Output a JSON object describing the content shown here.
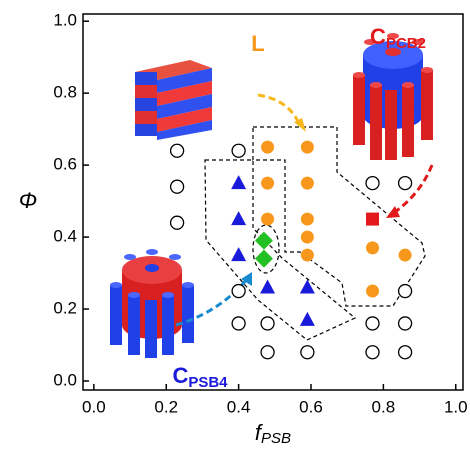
{
  "chart_data": {
    "type": "scatter",
    "x_label": {
      "text": "f",
      "sub": "PSB"
    },
    "y_label": "Φ",
    "xlim": [
      -0.03,
      1.02
    ],
    "ylim": [
      -0.025,
      1.02
    ],
    "xticks": [
      {
        "value": 0,
        "label": "0.0"
      },
      0.2,
      0.4,
      0.6,
      0.8,
      {
        "value": 1,
        "label": "1.0"
      }
    ],
    "yticks": [
      {
        "value": 0,
        "label": "0.0"
      },
      0.2,
      0.4,
      0.6,
      0.8,
      {
        "value": 1,
        "label": "1.0"
      }
    ],
    "series": [
      {
        "marker": "open-circle",
        "color": "#000000",
        "x": [
          0.23,
          0.23,
          0.23,
          0.4,
          0.4,
          0.4,
          0.48,
          0.48,
          0.59,
          0.77,
          0.77,
          0.77,
          0.86,
          0.86,
          0.86,
          0.86
        ],
        "values": [
          0.64,
          0.54,
          0.44,
          0.64,
          0.25,
          0.16,
          0.16,
          0.08,
          0.08,
          0.55,
          0.16,
          0.08,
          0.55,
          0.25,
          0.16,
          0.08
        ]
      },
      {
        "marker": "circle",
        "color": "#f7981d",
        "x": [
          0.48,
          0.48,
          0.48,
          0.59,
          0.59,
          0.59,
          0.59,
          0.59,
          0.77,
          0.77,
          0.86
        ],
        "values": [
          0.65,
          0.55,
          0.45,
          0.65,
          0.55,
          0.45,
          0.4,
          0.35,
          0.37,
          0.25,
          0.35
        ]
      },
      {
        "marker": "triangle",
        "color": "#1a1adb",
        "x": [
          0.4,
          0.4,
          0.4,
          0.48,
          0.59,
          0.59
        ],
        "values": [
          0.55,
          0.45,
          0.35,
          0.26,
          0.26,
          0.17
        ]
      },
      {
        "marker": "diamond",
        "color": "#22c022",
        "x": [
          0.47,
          0.47
        ],
        "values": [
          0.39,
          0.34
        ]
      },
      {
        "marker": "square",
        "color": "#e31a1c",
        "x": [
          0.77
        ],
        "values": [
          0.45
        ]
      }
    ],
    "annotations": [
      {
        "text": "L",
        "color": "#f7981d"
      },
      {
        "text": "C",
        "sub": "PCB2",
        "color": "#e31a1c"
      },
      {
        "text": "C",
        "sub": "PSB4",
        "color": "#1a1adb"
      }
    ]
  }
}
